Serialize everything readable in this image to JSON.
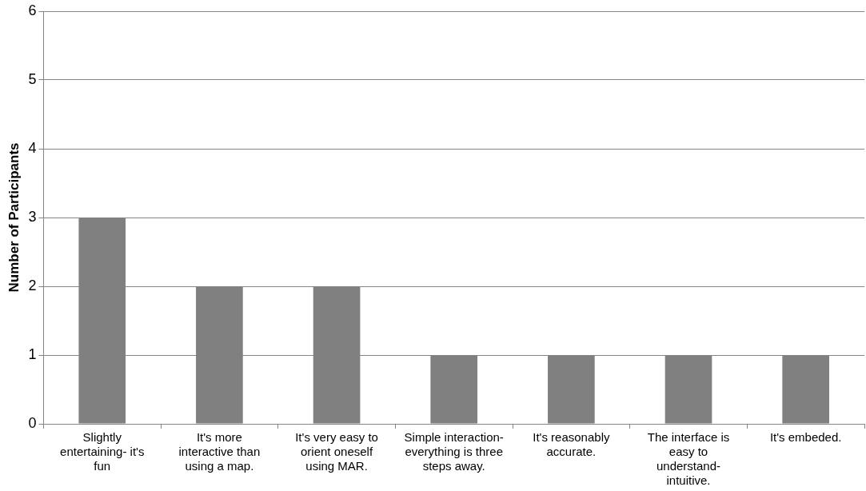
{
  "chart_data": {
    "type": "bar",
    "ylabel": "Number of Participants",
    "categories": [
      "Slightly entertaining- it's fun",
      "It's more interactive than using a map.",
      "It's very easy to orient oneself using MAR.",
      "Simple interaction- everything is three steps away.",
      "It's reasonably accurate.",
      "The interface is easy to understand- intuitive.",
      "It's embeded."
    ],
    "values": [
      3,
      2,
      2,
      1,
      1,
      1,
      1
    ],
    "color": "#808080",
    "ylim": [
      0,
      6
    ],
    "yticks": [
      0,
      1,
      2,
      3,
      4,
      5,
      6
    ],
    "grid": "y",
    "legend": false
  }
}
